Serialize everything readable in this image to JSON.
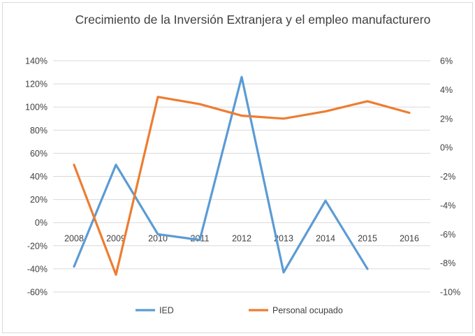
{
  "chart_data": {
    "type": "line",
    "title": "Crecimiento de la Inversión Extranjera y el empleo manufacturero",
    "categories": [
      "2008",
      "2009",
      "2010",
      "2011",
      "2012",
      "2013",
      "2014",
      "2015",
      "2016"
    ],
    "y_left": {
      "ylim": [
        -60,
        140
      ],
      "ticks": [
        -60,
        -40,
        -20,
        0,
        20,
        40,
        60,
        80,
        100,
        120,
        140
      ],
      "tick_labels": [
        "-60%",
        "-40%",
        "-20%",
        "0%",
        "20%",
        "40%",
        "60%",
        "80%",
        "100%",
        "120%",
        "140%"
      ]
    },
    "y_right": {
      "ylim": [
        -10,
        6
      ],
      "ticks": [
        -10,
        -8,
        -6,
        -4,
        -2,
        0,
        2,
        4,
        6
      ],
      "tick_labels": [
        "-10%",
        "-8%",
        "-6%",
        "-4%",
        "-2%",
        "0%",
        "2%",
        "4%",
        "6%"
      ]
    },
    "grid": true,
    "legend": "bottom",
    "series": [
      {
        "name": "IED",
        "axis": "left",
        "color": "#5b9bd5",
        "values": [
          -38,
          50,
          -10,
          -15,
          126,
          -43,
          19,
          -40,
          null
        ]
      },
      {
        "name": "Personal ocupado",
        "axis": "right",
        "color": "#ed7d31",
        "values": [
          -1.2,
          -8.8,
          3.5,
          3.0,
          2.2,
          2.0,
          2.5,
          3.2,
          2.4
        ]
      }
    ]
  }
}
